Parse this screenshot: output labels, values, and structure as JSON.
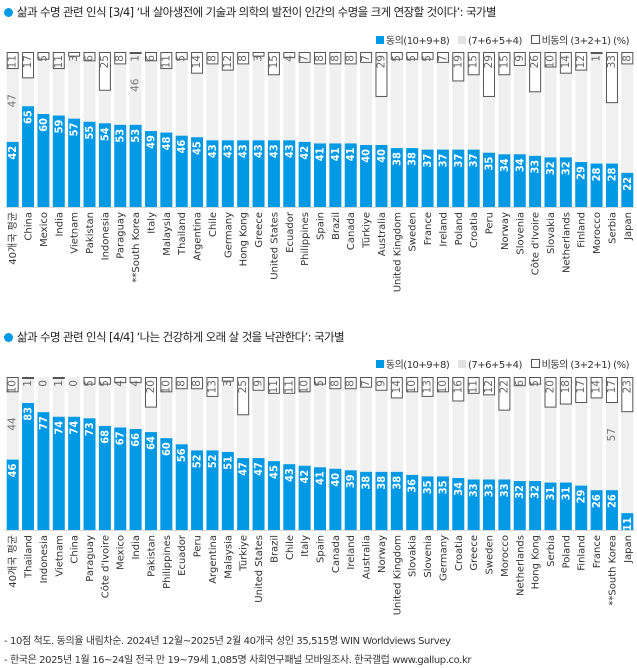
{
  "legend": {
    "agree": "동의(10+9+8)",
    "neutral": "(7+6+5+4)",
    "disagree": "비동의 (3+2+1) (%)"
  },
  "colors": {
    "agree": "#0099e6",
    "neutral": "#f0f0f0",
    "disagree": "#ffffff",
    "accent": "#0099e6"
  },
  "footnotes": [
    "- 10점 척도. 동의율 내림차순. 2024년 12월~2025년 2월 40개국 성인 35,515명 WIN Worldviews Survey",
    "- 한국은 2025년 1월 16~24일 전국 만 19~79세 1,085명 사회연구패널 모바일조사. 한국갤럽 www.gallup.co.kr"
  ],
  "chart_data": [
    {
      "type": "bar",
      "stacked": true,
      "title": "삶과 수명 관련 인식 [3/4] ‘내 살아생전에 기술과 의학의 발전이 인간의 수명을 크게 연장할 것이다’: 국가별",
      "xlabel": "",
      "ylabel": "%",
      "ylim": [
        0,
        100
      ],
      "legend_position": "top-right",
      "categories": [
        "40개국 평균",
        "China",
        "Mexico",
        "India",
        "Vietnam",
        "Pakistan",
        "Indonesia",
        "Paraguay",
        "**South Korea",
        "Italy",
        "Malaysia",
        "Thailand",
        "Argentina",
        "Chile",
        "Germany",
        "Hong Kong",
        "Greece",
        "United States",
        "Ecuador",
        "Philippines",
        "Spain",
        "Brazil",
        "Canada",
        "Türkiye",
        "Australia",
        "United Kingdom",
        "Sweden",
        "France",
        "Ireland",
        "Poland",
        "Croatia",
        "Peru",
        "Norway",
        "Slovenia",
        "Côte d'Ivoire",
        "Slovakia",
        "Netherlands",
        "Finland",
        "Morocco",
        "Serbia",
        "Japan"
      ],
      "series": [
        {
          "name": "동의(10+9+8)",
          "values": [
            42,
            65,
            60,
            59,
            57,
            55,
            54,
            53,
            53,
            49,
            48,
            46,
            45,
            43,
            43,
            43,
            43,
            43,
            43,
            42,
            41,
            41,
            41,
            40,
            40,
            38,
            38,
            37,
            37,
            37,
            37,
            35,
            34,
            34,
            33,
            32,
            32,
            29,
            28,
            28,
            22
          ]
        },
        {
          "name": "(7+6+5+4)",
          "values": [
            47,
            18,
            35,
            30,
            40,
            39,
            21,
            39,
            46,
            45,
            41,
            49,
            41,
            49,
            45,
            49,
            54,
            42,
            53,
            51,
            51,
            51,
            51,
            53,
            31,
            57,
            57,
            58,
            56,
            44,
            48,
            36,
            51,
            57,
            41,
            58,
            54,
            59,
            71,
            39,
            70
          ]
        },
        {
          "name": "비동의 (3+2+1)",
          "values": [
            11,
            17,
            5,
            11,
            3,
            6,
            25,
            8,
            1,
            6,
            11,
            5,
            14,
            8,
            12,
            8,
            3,
            15,
            4,
            7,
            8,
            8,
            8,
            7,
            29,
            5,
            5,
            5,
            7,
            19,
            15,
            29,
            15,
            9,
            26,
            10,
            14,
            12,
            1,
            33,
            8
          ]
        }
      ],
      "printed_neutral_labels": {
        "0": 47,
        "8": 46
      }
    },
    {
      "type": "bar",
      "stacked": true,
      "title": "삶과 수명 관련 인식 [4/4] ‘나는 건강하게 오래 살 것을 낙관한다’: 국가별",
      "xlabel": "",
      "ylabel": "%",
      "ylim": [
        0,
        100
      ],
      "legend_position": "top-right",
      "categories": [
        "40개국 평균",
        "Thailand",
        "Indonesia",
        "Vietnam",
        "China",
        "Paraguay",
        "Côte d'Ivoire",
        "Mexico",
        "India",
        "Pakistan",
        "Philippines",
        "Ecuador",
        "Peru",
        "Argentina",
        "Malaysia",
        "Türkiye",
        "United States",
        "Brazil",
        "Chile",
        "Italy",
        "Spain",
        "Canada",
        "Ireland",
        "Australia",
        "Norway",
        "United Kingdom",
        "Slovakia",
        "Slovenia",
        "Germany",
        "Croatia",
        "Greece",
        "Sweden",
        "Morocco",
        "Netherlands",
        "Hong Kong",
        "Serbia",
        "Poland",
        "Finland",
        "France",
        "**South Korea",
        "Japan"
      ],
      "series": [
        {
          "name": "동의(10+9+8)",
          "values": [
            46,
            83,
            77,
            74,
            74,
            73,
            68,
            67,
            66,
            64,
            60,
            56,
            52,
            52,
            51,
            47,
            47,
            45,
            43,
            42,
            41,
            40,
            39,
            38,
            38,
            38,
            36,
            35,
            35,
            34,
            33,
            33,
            33,
            32,
            32,
            31,
            31,
            29,
            26,
            26,
            11
          ]
        },
        {
          "name": "(7+6+5+4)",
          "values": [
            44,
            16,
            23,
            25,
            26,
            22,
            27,
            29,
            30,
            16,
            30,
            36,
            40,
            35,
            46,
            28,
            44,
            44,
            46,
            48,
            54,
            52,
            53,
            55,
            53,
            48,
            54,
            52,
            55,
            50,
            56,
            55,
            45,
            62,
            63,
            49,
            51,
            54,
            60,
            57,
            66
          ]
        },
        {
          "name": "비동의 (3+2+1)",
          "values": [
            10,
            1,
            0,
            1,
            0,
            5,
            5,
            4,
            4,
            20,
            10,
            8,
            8,
            13,
            3,
            25,
            9,
            11,
            11,
            10,
            5,
            8,
            8,
            7,
            9,
            14,
            10,
            13,
            10,
            16,
            11,
            12,
            22,
            6,
            5,
            20,
            18,
            17,
            14,
            17,
            23
          ]
        }
      ],
      "printed_neutral_labels": {
        "0": 44,
        "39": 57
      }
    }
  ]
}
